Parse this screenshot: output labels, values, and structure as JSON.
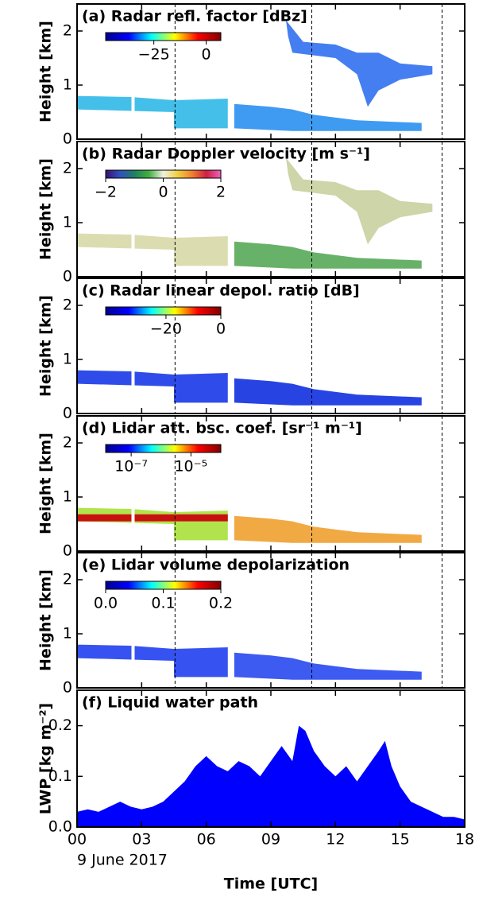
{
  "chart_data": [
    {
      "type": "heatmap",
      "title": "(a) Radar refl. factor [dBz]",
      "ylabel": "Height [km]",
      "ylim": [
        0,
        2.5
      ],
      "yticks": [
        0,
        1,
        2
      ],
      "colorbar": {
        "lim": [
          -48,
          7
        ],
        "ticks": [
          {
            "value": -25,
            "label": "−25"
          },
          0
        ],
        "colormap": [
          "#00008f",
          "#0000ff",
          "#00ffff",
          "#ffff00",
          "#ff0000",
          "#800000"
        ]
      },
      "vlines": [
        4.55,
        10.9,
        16.95
      ]
    },
    {
      "type": "heatmap",
      "title": "(b) Radar Doppler velocity [m s⁻¹]",
      "ylabel": "Height [km]",
      "ylim": [
        0,
        2.5
      ],
      "yticks": [
        0,
        1,
        2
      ],
      "colorbar": {
        "lim": [
          -2,
          2
        ],
        "ticks": [
          {
            "value": -2,
            "label": "−2"
          },
          0,
          2
        ],
        "colormap": [
          "#3b0f70",
          "#3050c0",
          "#208060",
          "#40b040",
          "#f0f0e0",
          "#f0d040",
          "#f08030",
          "#d02040",
          "#f060c0"
        ]
      },
      "vlines": [
        4.55,
        10.9,
        16.95
      ]
    },
    {
      "type": "heatmap",
      "title": "(c) Radar linear depol. ratio [dB]",
      "ylabel": "Height [km]",
      "ylim": [
        0,
        2.5
      ],
      "yticks": [
        0,
        1,
        2
      ],
      "colorbar": {
        "lim": [
          -42,
          0
        ],
        "ticks": [
          {
            "value": -20,
            "label": "−20"
          },
          0
        ],
        "colormap": [
          "#00008f",
          "#0000ff",
          "#00ffff",
          "#ffff00",
          "#ff0000",
          "#800000"
        ]
      },
      "vlines": [
        4.55,
        10.9,
        16.95
      ]
    },
    {
      "type": "heatmap",
      "title": "(d) Lidar att. bsc. coef. [sr⁻¹ m⁻¹]",
      "ylabel": "Height [km]",
      "ylim": [
        0,
        2.5
      ],
      "yticks": [
        0,
        1,
        2
      ],
      "colorbar": {
        "lim": [
          1.4e-08,
          0.0001
        ],
        "log": true,
        "ticks": [
          {
            "value": 1e-07,
            "label": "10⁻⁷"
          },
          {
            "value": 1e-05,
            "label": "10⁻⁵"
          }
        ],
        "colormap": [
          "#00008f",
          "#0000ff",
          "#00ffff",
          "#ffff00",
          "#ff0000",
          "#800000"
        ]
      },
      "vlines": [
        4.55,
        10.9,
        16.95
      ]
    },
    {
      "type": "heatmap",
      "title": "(e) Lidar volume depolarization",
      "ylabel": "Height [km]",
      "ylim": [
        0,
        2.5
      ],
      "yticks": [
        0,
        1,
        2
      ],
      "colorbar": {
        "lim": [
          0,
          0.2
        ],
        "ticks": [
          {
            "value": 0,
            "label": "0.0"
          },
          0.1,
          0.2
        ],
        "colormap": [
          "#00008f",
          "#0000ff",
          "#00ffff",
          "#ffff00",
          "#ff0000",
          "#800000"
        ]
      },
      "vlines": [
        4.55,
        10.9,
        16.95
      ]
    },
    {
      "type": "area",
      "title": "(f) Liquid water path",
      "ylabel": "LWP [kg m⁻²]",
      "xlabel": "Time [UTC]",
      "date_label": "9 June 2017",
      "color": "#0000ff",
      "xlim": [
        0,
        18
      ],
      "xticks": [
        {
          "value": 0,
          "label": "00"
        },
        {
          "value": 3,
          "label": "03"
        },
        {
          "value": 6,
          "label": "06"
        },
        {
          "value": 9,
          "label": "09"
        },
        12,
        15,
        18
      ],
      "ylim": [
        0,
        0.27
      ],
      "yticks": [
        {
          "value": 0,
          "label": "0.0"
        },
        0.1,
        0.2
      ],
      "x": [
        0,
        0.5,
        1,
        1.5,
        2,
        2.5,
        3,
        3.5,
        4,
        4.5,
        5,
        5.5,
        6,
        6.5,
        7,
        7.5,
        8,
        8.5,
        9,
        9.5,
        10,
        10.3,
        10.6,
        11,
        11.5,
        12,
        12.5,
        13,
        13.5,
        14,
        14.3,
        14.6,
        15,
        15.5,
        16,
        16.5,
        17,
        17.5,
        18
      ],
      "values": [
        0.03,
        0.035,
        0.03,
        0.04,
        0.05,
        0.04,
        0.035,
        0.04,
        0.05,
        0.07,
        0.09,
        0.12,
        0.14,
        0.12,
        0.11,
        0.13,
        0.12,
        0.1,
        0.13,
        0.16,
        0.13,
        0.2,
        0.19,
        0.15,
        0.12,
        0.1,
        0.12,
        0.09,
        0.12,
        0.15,
        0.17,
        0.12,
        0.08,
        0.05,
        0.04,
        0.03,
        0.02,
        0.02,
        0.015
      ]
    }
  ]
}
